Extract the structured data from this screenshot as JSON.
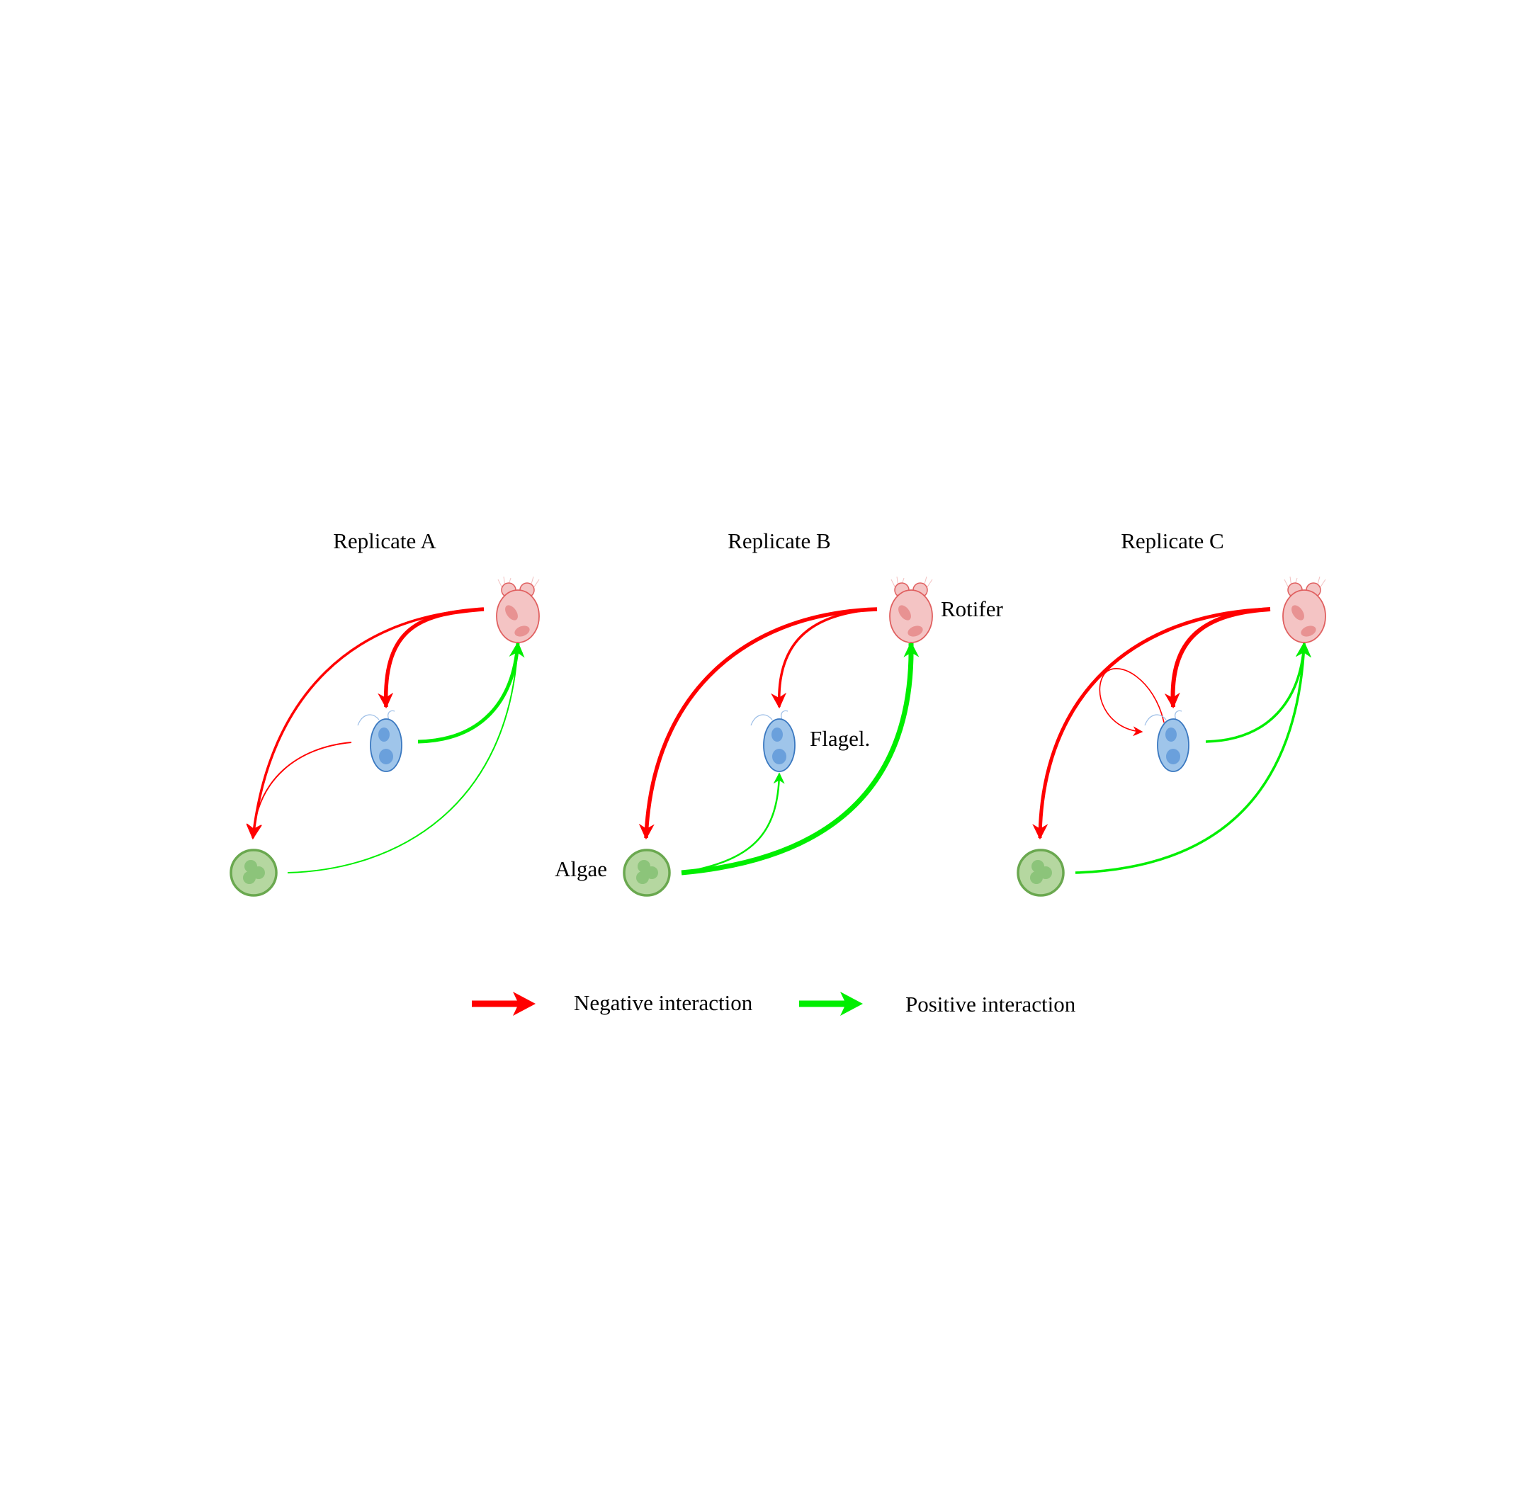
{
  "panels": [
    {
      "title": "Replicate A",
      "node_labels": {
        "rotifer": "",
        "flagellate": "",
        "algae": ""
      },
      "edges": [
        {
          "from": "rotifer",
          "to": "flagellate",
          "sign": "negative",
          "strength": "strong"
        },
        {
          "from": "rotifer",
          "to": "algae",
          "sign": "negative",
          "strength": "medium"
        },
        {
          "from": "flagellate",
          "to": "algae",
          "sign": "negative",
          "strength": "weak"
        },
        {
          "from": "flagellate",
          "to": "rotifer",
          "sign": "positive",
          "strength": "strong"
        },
        {
          "from": "algae",
          "to": "rotifer",
          "sign": "positive",
          "strength": "weak"
        }
      ]
    },
    {
      "title": "Replicate B",
      "node_labels": {
        "rotifer": "Rotifer",
        "flagellate": "Flagel.",
        "algae": "Algae"
      },
      "edges": [
        {
          "from": "rotifer",
          "to": "algae",
          "sign": "negative",
          "strength": "strong"
        },
        {
          "from": "rotifer",
          "to": "flagellate",
          "sign": "negative",
          "strength": "medium"
        },
        {
          "from": "algae",
          "to": "rotifer",
          "sign": "positive",
          "strength": "very-strong"
        },
        {
          "from": "algae",
          "to": "flagellate",
          "sign": "positive",
          "strength": "weak"
        }
      ]
    },
    {
      "title": "Replicate C",
      "node_labels": {
        "rotifer": "",
        "flagellate": "",
        "algae": ""
      },
      "edges": [
        {
          "from": "rotifer",
          "to": "algae",
          "sign": "negative",
          "strength": "strong"
        },
        {
          "from": "rotifer",
          "to": "flagellate",
          "sign": "negative",
          "strength": "strong"
        },
        {
          "from": "flagellate",
          "to": "flagellate",
          "sign": "negative",
          "strength": "weak"
        },
        {
          "from": "flagellate",
          "to": "rotifer",
          "sign": "positive",
          "strength": "medium"
        },
        {
          "from": "algae",
          "to": "rotifer",
          "sign": "positive",
          "strength": "medium"
        }
      ]
    }
  ],
  "legend": {
    "negative_label": "Negative interaction",
    "positive_label": "Positive interaction"
  },
  "colors": {
    "negative": "#ff0000",
    "positive": "#00ee00",
    "rotifer_fill": "#f4c4c4",
    "rotifer_stroke": "#e06060",
    "flagellate_fill": "#9fc5ea",
    "flagellate_stroke": "#3a78c0",
    "algae_fill": "#b5d7a0",
    "algae_stroke": "#6aa84f"
  }
}
